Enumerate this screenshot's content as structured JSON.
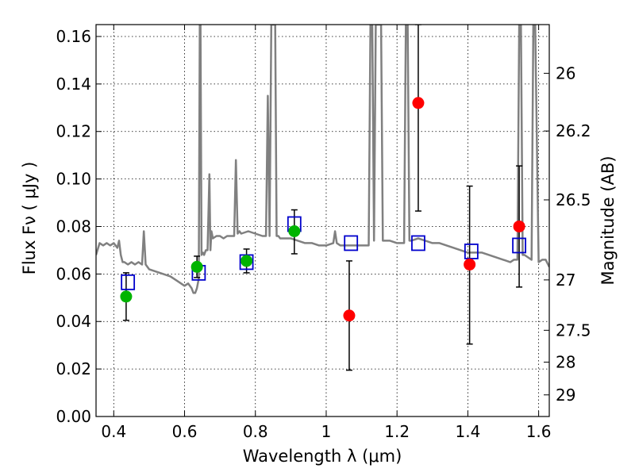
{
  "chart_data": {
    "type": "scatter",
    "xlabel": "Wavelength  λ (μm)",
    "ylabel": "Flux  Fν  ( μJy )",
    "y2label": "Magnitude (AB)",
    "xlim": [
      0.35,
      1.63
    ],
    "ylim": [
      0.0,
      0.165
    ],
    "grid": true,
    "x_ticks": [
      0.4,
      0.6,
      0.8,
      1.0,
      1.2,
      1.4,
      1.6
    ],
    "x_tick_labels": [
      "0.4",
      "0.6",
      "0.8",
      "1",
      "1.2",
      "1.4",
      "1.6"
    ],
    "y_ticks": [
      0.0,
      0.02,
      0.04,
      0.06,
      0.08,
      0.1,
      0.12,
      0.14,
      0.16
    ],
    "y_tick_labels": [
      "0.00",
      "0.02",
      "0.04",
      "0.06",
      "0.08",
      "0.10",
      "0.12",
      "0.14",
      "0.16"
    ],
    "y2_ticks": [
      {
        "label": "26",
        "flux": 0.1445
      },
      {
        "label": "26.2",
        "flux": 0.1202
      },
      {
        "label": "26.5",
        "flux": 0.0912
      },
      {
        "label": "27",
        "flux": 0.0575
      },
      {
        "label": "27.5",
        "flux": 0.0363
      },
      {
        "label": "28",
        "flux": 0.0229
      },
      {
        "label": "29",
        "flux": 0.0091
      }
    ],
    "spectrum": {
      "name": "",
      "color": "#808080",
      "x": [
        0.35,
        0.36,
        0.37,
        0.38,
        0.39,
        0.4,
        0.41,
        0.415,
        0.42,
        0.425,
        0.43,
        0.44,
        0.45,
        0.46,
        0.47,
        0.48,
        0.485,
        0.49,
        0.5,
        0.52,
        0.54,
        0.56,
        0.58,
        0.6,
        0.61,
        0.62,
        0.625,
        0.63,
        0.635,
        0.64,
        0.643,
        0.645,
        0.648,
        0.652,
        0.655,
        0.66,
        0.665,
        0.67,
        0.673,
        0.676,
        0.68,
        0.69,
        0.7,
        0.71,
        0.72,
        0.73,
        0.74,
        0.745,
        0.75,
        0.755,
        0.76,
        0.78,
        0.8,
        0.82,
        0.83,
        0.835,
        0.84,
        0.845,
        0.85,
        0.853,
        0.856,
        0.86,
        0.865,
        0.87,
        0.88,
        0.9,
        0.92,
        0.94,
        0.96,
        0.98,
        1.0,
        1.02,
        1.025,
        1.03,
        1.04,
        1.06,
        1.08,
        1.1,
        1.12,
        1.125,
        1.13,
        1.135,
        1.14,
        1.145,
        1.15,
        1.155,
        1.16,
        1.17,
        1.18,
        1.2,
        1.22,
        1.225,
        1.23,
        1.235,
        1.24,
        1.26,
        1.28,
        1.3,
        1.32,
        1.34,
        1.36,
        1.38,
        1.4,
        1.42,
        1.44,
        1.46,
        1.48,
        1.5,
        1.52,
        1.53,
        1.54,
        1.545,
        1.55,
        1.555,
        1.56,
        1.57,
        1.58,
        1.585,
        1.59,
        1.6,
        1.61,
        1.62,
        1.63
      ],
      "y": [
        0.068,
        0.073,
        0.072,
        0.073,
        0.072,
        0.073,
        0.071,
        0.074,
        0.068,
        0.065,
        0.065,
        0.064,
        0.065,
        0.064,
        0.065,
        0.064,
        0.078,
        0.064,
        0.062,
        0.061,
        0.06,
        0.059,
        0.057,
        0.055,
        0.056,
        0.054,
        0.052,
        0.052,
        0.054,
        0.058,
        0.165,
        0.165,
        0.068,
        0.069,
        0.068,
        0.07,
        0.07,
        0.102,
        0.07,
        0.078,
        0.075,
        0.076,
        0.076,
        0.075,
        0.076,
        0.076,
        0.076,
        0.108,
        0.077,
        0.078,
        0.077,
        0.078,
        0.077,
        0.076,
        0.076,
        0.135,
        0.076,
        0.165,
        0.165,
        0.165,
        0.165,
        0.076,
        0.076,
        0.075,
        0.075,
        0.075,
        0.074,
        0.073,
        0.073,
        0.072,
        0.072,
        0.073,
        0.078,
        0.073,
        0.072,
        0.072,
        0.072,
        0.072,
        0.072,
        0.165,
        0.165,
        0.074,
        0.165,
        0.165,
        0.165,
        0.165,
        0.074,
        0.074,
        0.074,
        0.073,
        0.073,
        0.165,
        0.165,
        0.074,
        0.074,
        0.075,
        0.074,
        0.073,
        0.073,
        0.072,
        0.071,
        0.07,
        0.069,
        0.069,
        0.069,
        0.068,
        0.067,
        0.066,
        0.065,
        0.066,
        0.066,
        0.165,
        0.165,
        0.068,
        0.068,
        0.067,
        0.066,
        0.165,
        0.166,
        0.065,
        0.066,
        0.066,
        0.063
      ]
    },
    "series": [
      {
        "name": "",
        "marker": "square",
        "color": "#0000cc",
        "x": [
          0.44,
          0.64,
          0.775,
          0.91,
          1.07,
          1.26,
          1.41,
          1.545
        ],
        "y": [
          0.0565,
          0.0605,
          0.065,
          0.081,
          0.073,
          0.073,
          0.0695,
          0.072
        ]
      },
      {
        "name": "",
        "marker": "circle",
        "color": "#00b400",
        "x": [
          0.435,
          0.635,
          0.775,
          0.91
        ],
        "y": [
          0.0505,
          0.063,
          0.0655,
          0.078
        ]
      },
      {
        "name": "",
        "marker": "circle",
        "color": "#ff0000",
        "x": [
          1.065,
          1.26,
          1.405,
          1.545
        ],
        "y": [
          0.0425,
          0.132,
          0.064,
          0.08
        ]
      }
    ],
    "errorbars": [
      {
        "x": 0.435,
        "low": 0.0405,
        "high": 0.0605
      },
      {
        "x": 0.635,
        "low": 0.0585,
        "high": 0.0675
      },
      {
        "x": 0.775,
        "low": 0.0605,
        "high": 0.0705
      },
      {
        "x": 0.91,
        "low": 0.0685,
        "high": 0.087
      },
      {
        "x": 1.065,
        "low": 0.0195,
        "high": 0.0655
      },
      {
        "x": 1.26,
        "low": 0.0865,
        "high": 0.165
      },
      {
        "x": 1.405,
        "low": 0.0305,
        "high": 0.097
      },
      {
        "x": 1.545,
        "low": 0.0545,
        "high": 0.1055
      }
    ]
  }
}
